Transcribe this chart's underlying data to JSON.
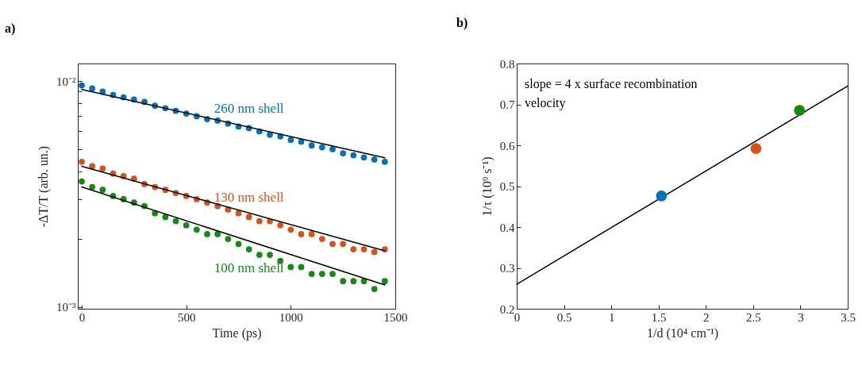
{
  "chart_data": [
    {
      "type": "scatter",
      "title": "a)",
      "xlabel": "Time (ps)",
      "ylabel": "-ΔT/T (arb. un.)",
      "log": "y",
      "xlim": [
        -19,
        1500
      ],
      "xticks": [
        0,
        500,
        1000,
        1500
      ],
      "ylim": [
        0.00098,
        0.012
      ],
      "yticks": [
        {
          "value": 0.001,
          "label": "10⁻³"
        },
        {
          "value": 0.002,
          "label": null
        },
        {
          "value": 0.003,
          "label": null
        },
        {
          "value": 0.004,
          "label": null
        },
        {
          "value": 0.005,
          "label": null
        },
        {
          "value": 0.006,
          "label": null
        },
        {
          "value": 0.007,
          "label": null
        },
        {
          "value": 0.008,
          "label": null
        },
        {
          "value": 0.009,
          "label": null
        },
        {
          "value": 0.01,
          "label": "10⁻²"
        }
      ],
      "x": [
        0,
        50,
        100,
        150,
        200,
        250,
        300,
        350,
        400,
        450,
        500,
        550,
        600,
        650,
        700,
        750,
        800,
        850,
        900,
        950,
        1000,
        1050,
        1100,
        1150,
        1200,
        1250,
        1300,
        1350,
        1400,
        1450
      ],
      "series": [
        {
          "name": "260 nm shell",
          "marker": "circle",
          "color": "#0072bd",
          "values": [
            0.0096,
            0.0093,
            0.009,
            0.0087,
            0.0085,
            0.0083,
            0.0081,
            0.0078,
            0.0076,
            0.0074,
            0.0072,
            0.007,
            0.0068,
            0.0067,
            0.0065,
            0.0063,
            0.0062,
            0.006,
            0.0058,
            0.0057,
            0.0055,
            0.0054,
            0.0052,
            0.0051,
            0.005,
            0.0048,
            0.0047,
            0.0046,
            0.0045,
            0.0044
          ]
        },
        {
          "name": "130 nm shell",
          "marker": "circle",
          "color": "#d95319",
          "values": [
            0.0044,
            0.0042,
            0.0041,
            0.0039,
            0.0038,
            0.0037,
            0.0035,
            0.0034,
            0.0033,
            0.0032,
            0.0031,
            0.003,
            0.0029,
            0.0028,
            0.0027,
            0.0026,
            0.0025,
            0.0024,
            0.0024,
            0.0023,
            0.0022,
            0.0021,
            0.0021,
            0.002,
            0.0019,
            0.0019,
            0.0018,
            0.0018,
            0.00175,
            0.0018
          ]
        },
        {
          "name": "100 nm shell",
          "marker": "circle",
          "color": "#138a13",
          "values": [
            0.0036,
            0.0034,
            0.0033,
            0.0031,
            0.003,
            0.0029,
            0.0028,
            0.0026,
            0.0025,
            0.0024,
            0.0023,
            0.0022,
            0.0021,
            0.0021,
            0.002,
            0.0019,
            0.0018,
            0.0017,
            0.0017,
            0.0016,
            0.0015,
            0.0015,
            0.0014,
            0.0014,
            0.0014,
            0.0013,
            0.0013,
            0.0013,
            0.0012,
            0.0013
          ]
        },
        {
          "type": "line",
          "color": "#000000",
          "x": [
            0,
            1450
          ],
          "values": [
            0.0092,
            0.00458
          ]
        },
        {
          "type": "line",
          "color": "#000000",
          "x": [
            0,
            1450
          ],
          "values": [
            0.0042,
            0.00177
          ]
        },
        {
          "type": "line",
          "color": "#000000",
          "x": [
            0,
            1450
          ],
          "values": [
            0.0034,
            0.00125
          ]
        }
      ]
    },
    {
      "type": "scatter",
      "title": "b)",
      "xlabel": "1/d (10⁴ cm⁻¹)",
      "ylabel": "1/τ (10⁹ s⁻¹)",
      "xlim": [
        0,
        3.5
      ],
      "xticks": [
        0,
        0.5,
        1,
        1.5,
        2,
        2.5,
        3,
        3.5
      ],
      "ylim": [
        0.2,
        0.8
      ],
      "yticks": [
        0.2,
        0.3,
        0.4,
        0.5,
        0.6,
        0.7,
        0.8
      ],
      "annotations": [
        "slope = 4 x surface recombination velocity"
      ],
      "series": [
        {
          "type": "line",
          "color": "#000000",
          "x": [
            0,
            3.5
          ],
          "values": [
            0.26,
            0.745
          ]
        },
        {
          "marker": "circle",
          "x": [
            1.53,
            2.53,
            2.99
          ],
          "values": [
            0.476,
            0.592,
            0.685
          ],
          "colors": [
            "#0072bd",
            "#d95319",
            "#138a13"
          ]
        }
      ]
    }
  ]
}
